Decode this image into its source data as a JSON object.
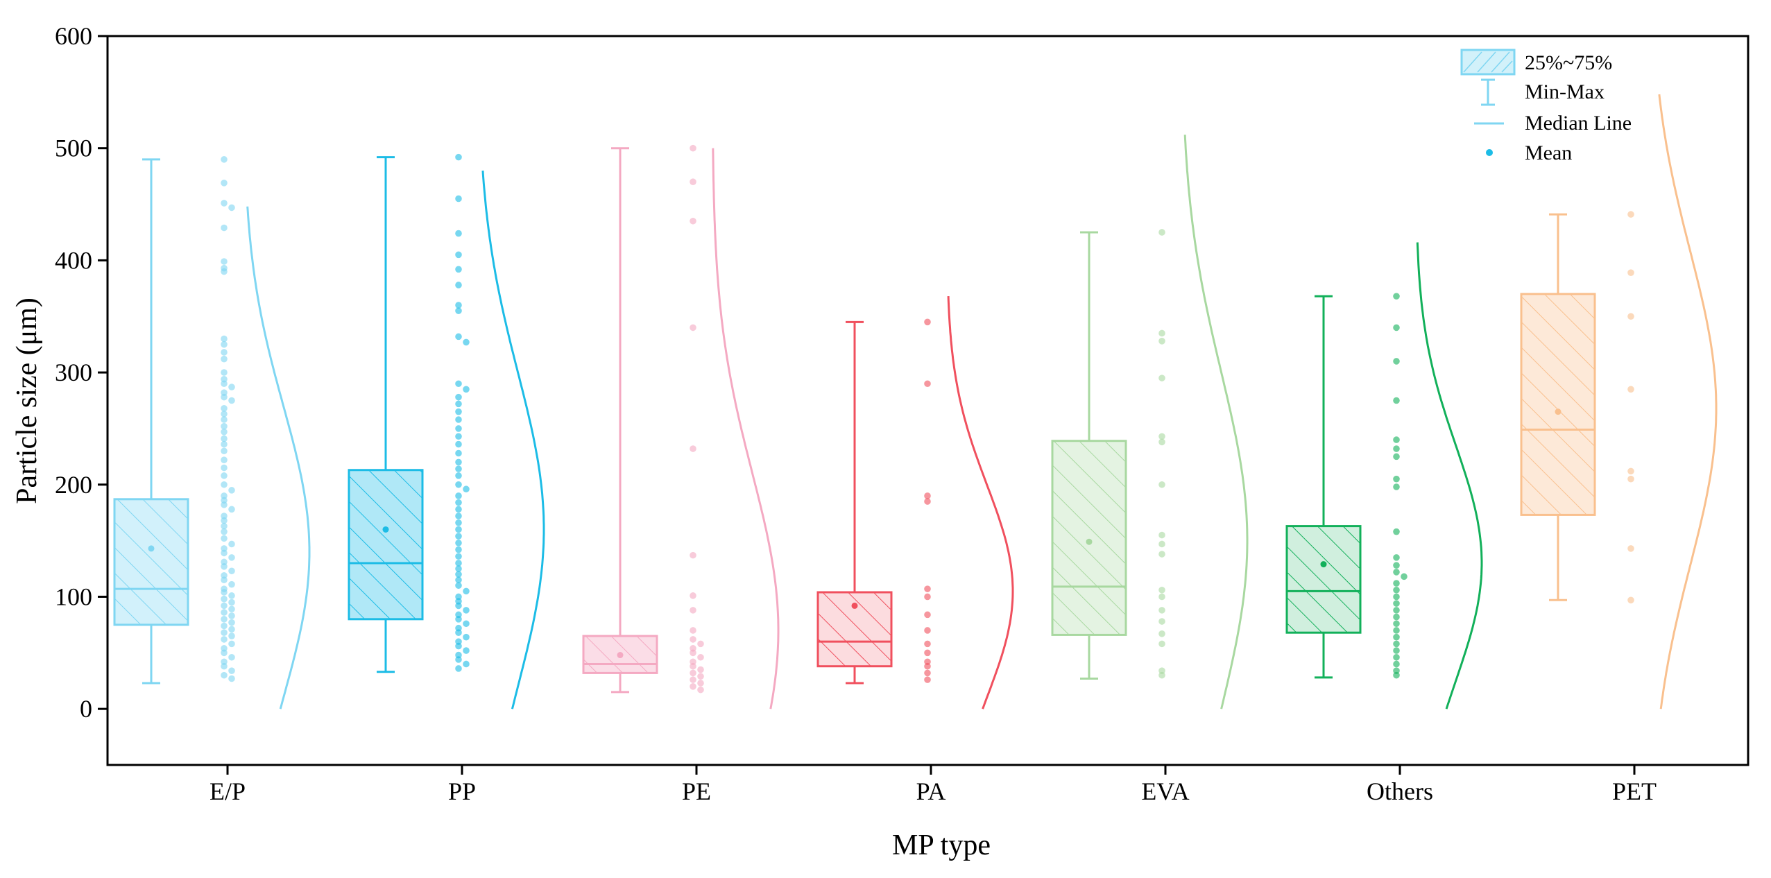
{
  "chart_data": {
    "type": "box",
    "title": "",
    "xlabel": "MP type",
    "ylabel": "Particle size (μm)",
    "ylim": [
      -50,
      600
    ],
    "yticks": [
      0,
      100,
      200,
      300,
      400,
      500,
      600
    ],
    "grid": false,
    "legend_position": "top-right",
    "legend": [
      {
        "name": "25%~75%",
        "kind": "box"
      },
      {
        "name": "Min-Max",
        "kind": "whisker"
      },
      {
        "name": "Median Line",
        "kind": "median"
      },
      {
        "name": "Mean",
        "kind": "mean"
      }
    ],
    "categories": [
      "E/P",
      "PP",
      "PE",
      "PA",
      "EVA",
      "Others",
      "PET"
    ],
    "series": [
      {
        "name": "E/P",
        "color": "#7FD6F2",
        "boxFill": 0.35,
        "min": 23,
        "q1": 75,
        "median": 107,
        "q3": 187,
        "max": 490,
        "mean": 143,
        "dist": {
          "mu": 140,
          "sigma": 130,
          "top": 450
        },
        "points": [
          490,
          469,
          451,
          447,
          429,
          399,
          393,
          390,
          330,
          325,
          318,
          312,
          300,
          294,
          290,
          287,
          282,
          278,
          275,
          268,
          263,
          258,
          252,
          247,
          241,
          236,
          230,
          222,
          215,
          208,
          200,
          195,
          190,
          186,
          182,
          178,
          172,
          168,
          163,
          158,
          152,
          147,
          143,
          139,
          135,
          131,
          127,
          123,
          119,
          115,
          111,
          107,
          104,
          101,
          98,
          95,
          92,
          89,
          86,
          83,
          80,
          77,
          74,
          71,
          68,
          65,
          62,
          58,
          54,
          50,
          46,
          42,
          38,
          34,
          30,
          27
        ]
      },
      {
        "name": "PP",
        "color": "#1CBCE6",
        "boxFill": 0.35,
        "min": 33,
        "q1": 80,
        "median": 130,
        "q3": 213,
        "max": 492,
        "mean": 160,
        "dist": {
          "mu": 160,
          "sigma": 140,
          "top": 483
        },
        "points": [
          492,
          455,
          424,
          405,
          392,
          378,
          360,
          355,
          332,
          327,
          290,
          285,
          278,
          272,
          265,
          258,
          250,
          243,
          236,
          228,
          220,
          214,
          208,
          200,
          196,
          190,
          184,
          178,
          172,
          166,
          160,
          154,
          148,
          142,
          136,
          130,
          125,
          120,
          115,
          110,
          105,
          100,
          96,
          92,
          88,
          84,
          80,
          76,
          72,
          68,
          64,
          60,
          56,
          52,
          48,
          44,
          40,
          36
        ]
      },
      {
        "name": "PE",
        "color": "#F4A9C2",
        "boxFill": 0.4,
        "min": 15,
        "q1": 32,
        "median": 40,
        "q3": 65,
        "max": 500,
        "mean": 48,
        "dist": {
          "mu": 70,
          "sigma": 140,
          "top": 500
        },
        "points": [
          500,
          470,
          435,
          340,
          232,
          137,
          101,
          88,
          70,
          62,
          58,
          54,
          50,
          46,
          42,
          38,
          35,
          32,
          29,
          26,
          23,
          20,
          17
        ]
      },
      {
        "name": "PA",
        "color": "#F0505E",
        "boxFill": 0.2,
        "min": 23,
        "q1": 38,
        "median": 60,
        "q3": 104,
        "max": 345,
        "mean": 92,
        "dist": {
          "mu": 105,
          "sigma": 95,
          "top": 370
        },
        "points": [
          345,
          290,
          190,
          185,
          107,
          100,
          84,
          70,
          58,
          50,
          42,
          38,
          32,
          26
        ]
      },
      {
        "name": "EVA",
        "color": "#A8D8A0",
        "boxFill": 0.3,
        "min": 27,
        "q1": 66,
        "median": 109,
        "q3": 239,
        "max": 425,
        "mean": 149,
        "dist": {
          "mu": 150,
          "sigma": 150,
          "top": 512
        },
        "points": [
          425,
          335,
          328,
          295,
          243,
          238,
          200,
          155,
          147,
          138,
          106,
          100,
          88,
          78,
          67,
          58,
          34,
          30
        ]
      },
      {
        "name": "Others",
        "color": "#12B05A",
        "boxFill": 0.2,
        "min": 28,
        "q1": 68,
        "median": 105,
        "q3": 163,
        "max": 368,
        "mean": 129,
        "dist": {
          "mu": 130,
          "sigma": 105,
          "top": 418
        },
        "points": [
          368,
          340,
          310,
          275,
          240,
          232,
          225,
          205,
          198,
          158,
          135,
          128,
          122,
          118,
          112,
          106,
          100,
          94,
          88,
          82,
          76,
          70,
          64,
          58,
          52,
          46,
          40,
          34,
          30
        ]
      },
      {
        "name": "PET",
        "color": "#F9C08E",
        "boxFill": 0.35,
        "min": 97,
        "q1": 173,
        "median": 249,
        "q3": 370,
        "max": 441,
        "mean": 265,
        "dist": {
          "mu": 268,
          "sigma": 140,
          "top": 550
        },
        "points": [
          441,
          389,
          350,
          285,
          212,
          205,
          143,
          97
        ]
      }
    ]
  }
}
